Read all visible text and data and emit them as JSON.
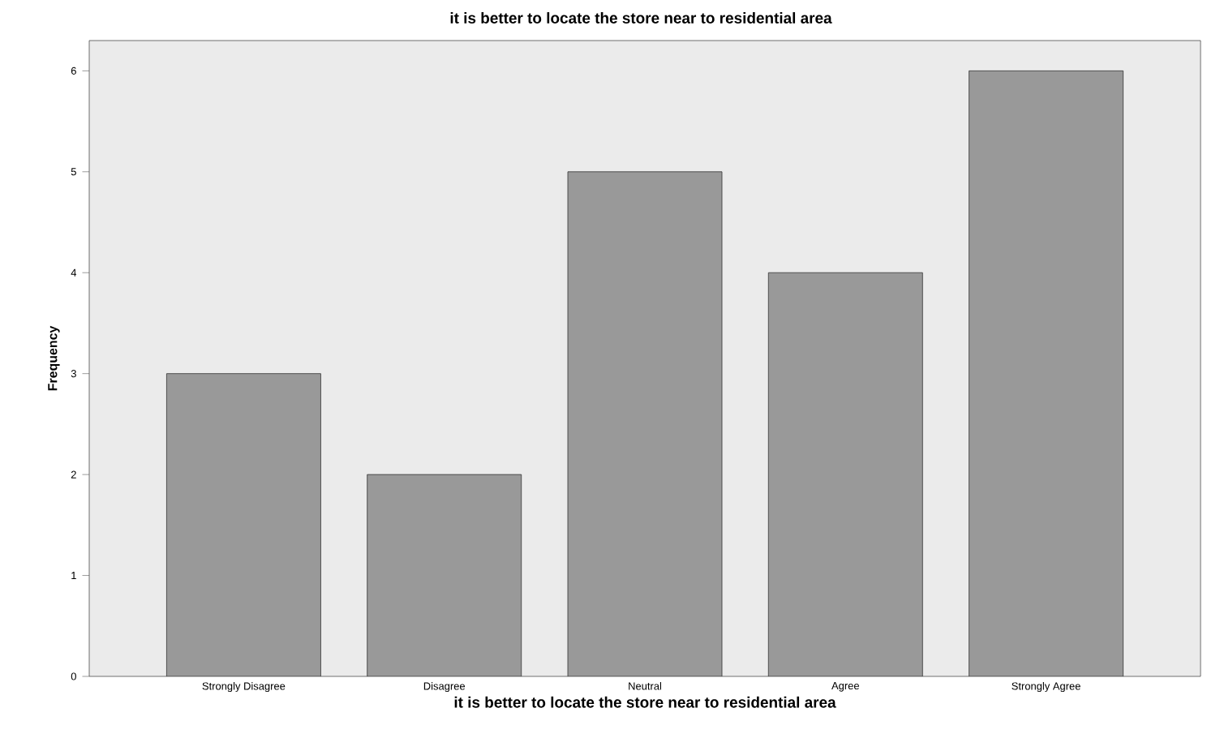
{
  "chart_data": {
    "type": "bar",
    "title": "it is better to locate the store near to residential area",
    "xlabel": "it is better to locate the store near to residential area",
    "ylabel": "Frequency",
    "categories": [
      "Strongly Disagree",
      "Disagree",
      "Neutral",
      "Agree",
      "Strongly Agree"
    ],
    "values": [
      3,
      2,
      5,
      4,
      6
    ],
    "color": "#999999",
    "ylim": [
      0,
      6.3
    ],
    "yticks": [
      0,
      1,
      2,
      3,
      4,
      5,
      6
    ],
    "grid": false
  }
}
